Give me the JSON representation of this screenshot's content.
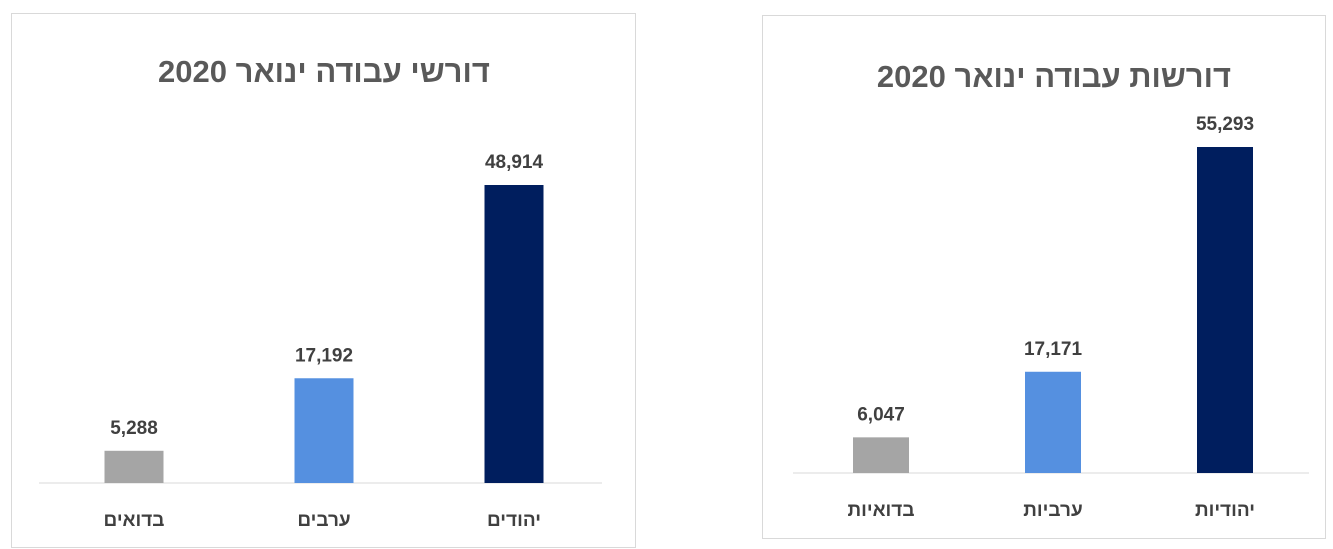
{
  "chart_data": [
    {
      "type": "bar",
      "title": "דורשי עבודה ינואר 2020",
      "categories": [
        "בדואים",
        "ערבים",
        "יהודים"
      ],
      "values": [
        5288,
        17192,
        48914
      ],
      "value_labels": [
        "5,288",
        "17,192",
        "48,914"
      ],
      "colors": [
        "#a5a5a5",
        "#5590e0",
        "#001e5e"
      ],
      "ylim": [
        0,
        60000
      ],
      "xlabel": "",
      "ylabel": "",
      "grid": false,
      "legend": "none"
    },
    {
      "type": "bar",
      "title": "דורשות עבודה ינואר 2020",
      "categories": [
        "בדואיות",
        "ערביות",
        "יהודיות"
      ],
      "values": [
        6047,
        17171,
        55293
      ],
      "value_labels": [
        "6,047",
        "17,171",
        "55,293"
      ],
      "colors": [
        "#a5a5a5",
        "#5590e0",
        "#001e5e"
      ],
      "ylim": [
        0,
        60000
      ],
      "xlabel": "",
      "ylabel": "",
      "grid": false,
      "legend": "none"
    }
  ]
}
